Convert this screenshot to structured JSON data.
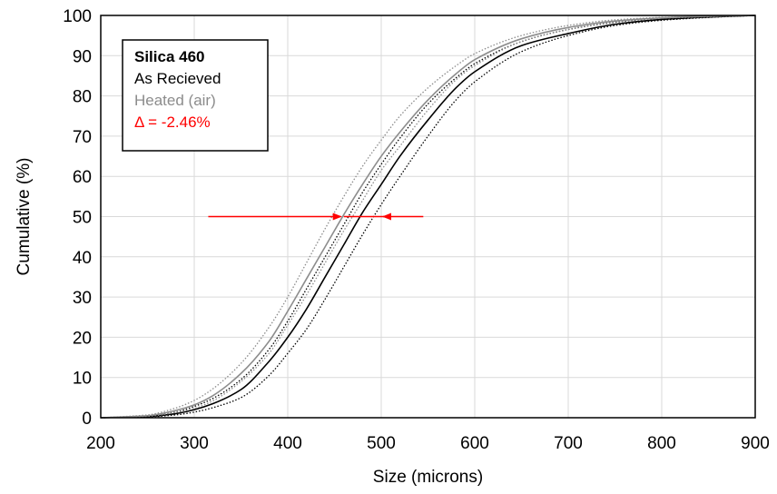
{
  "chart_data": {
    "type": "line",
    "title": "",
    "xlabel": "Size (microns)",
    "ylabel": "Cumulative  (%)",
    "xlim": [
      200,
      900
    ],
    "ylim": [
      0,
      100
    ],
    "x_ticks": [
      "200",
      "300",
      "400",
      "500",
      "600",
      "700",
      "800",
      "900"
    ],
    "y_ticks": [
      "0",
      "10",
      "20",
      "30",
      "40",
      "50",
      "60",
      "70",
      "80",
      "90",
      "100"
    ],
    "grid": true,
    "legend_position": "top-left",
    "legend": {
      "title": "Silica 460",
      "entries": [
        {
          "label": "As Recieved",
          "color": "#000000"
        },
        {
          "label": "Heated (air)",
          "color": "#8c8c8c"
        }
      ],
      "annotation": {
        "label": "Δ = -2.46%",
        "color": "#ff0000"
      }
    },
    "series": [
      {
        "color": "#000000",
        "style": "solid",
        "x": [
          200,
          250,
          280,
          300,
          320,
          350,
          380,
          400,
          420,
          440,
          460,
          480,
          500,
          520,
          550,
          580,
          600,
          650,
          700,
          750,
          800,
          850,
          900
        ],
        "y": [
          0,
          0.3,
          1,
          2,
          3.5,
          7,
          14,
          20,
          27,
          35,
          43,
          51,
          58,
          65,
          74,
          82,
          86,
          92.5,
          95.5,
          97.8,
          99,
          99.6,
          100
        ]
      },
      {
        "color": "#000000",
        "style": "dotted",
        "x": [
          200,
          250,
          280,
          300,
          320,
          350,
          380,
          400,
          420,
          440,
          460,
          480,
          500,
          520,
          550,
          580,
          600,
          650,
          700,
          750,
          800,
          850,
          900
        ],
        "y": [
          0,
          0.4,
          1.4,
          2.8,
          4.8,
          9.5,
          17,
          24,
          32,
          40,
          48,
          56,
          63,
          69.5,
          78,
          84.5,
          88,
          93.5,
          96.5,
          98.3,
          99.3,
          99.7,
          100
        ]
      },
      {
        "color": "#000000",
        "style": "dotted",
        "x": [
          200,
          250,
          280,
          300,
          320,
          350,
          380,
          400,
          420,
          440,
          460,
          480,
          500,
          520,
          550,
          580,
          600,
          650,
          700,
          750,
          800,
          850,
          900
        ],
        "y": [
          0,
          0.2,
          0.7,
          1.4,
          2.5,
          5,
          10.5,
          16,
          22,
          29.5,
          37.5,
          45.5,
          53,
          60,
          70,
          79,
          83.5,
          91,
          95,
          97.5,
          98.8,
          99.5,
          100
        ]
      },
      {
        "color": "#8c8c8c",
        "style": "solid",
        "x": [
          200,
          250,
          280,
          300,
          320,
          350,
          380,
          400,
          420,
          440,
          460,
          480,
          500,
          520,
          550,
          580,
          600,
          650,
          700,
          750,
          800,
          850,
          900
        ],
        "y": [
          0,
          0.5,
          1.8,
          3.2,
          5.5,
          11,
          19,
          26.5,
          34.5,
          42.5,
          50.5,
          58,
          65,
          71,
          79,
          85.5,
          89,
          94.2,
          97,
          98.6,
          99.4,
          99.8,
          100
        ]
      },
      {
        "color": "#8c8c8c",
        "style": "dotted",
        "x": [
          200,
          250,
          280,
          300,
          320,
          350,
          380,
          400,
          420,
          440,
          460,
          480,
          500,
          520,
          550,
          580,
          600,
          650,
          700,
          750,
          800,
          850,
          900
        ],
        "y": [
          0,
          0.7,
          2.4,
          4.3,
          7.2,
          13.5,
          22.5,
          30,
          38.5,
          47,
          55,
          62.5,
          69,
          75,
          82,
          87.5,
          90.5,
          95,
          97.5,
          98.9,
          99.5,
          99.8,
          100
        ]
      },
      {
        "color": "#8c8c8c",
        "style": "dotted",
        "x": [
          200,
          250,
          280,
          300,
          320,
          350,
          380,
          400,
          420,
          440,
          460,
          480,
          500,
          520,
          550,
          580,
          600,
          650,
          700,
          750,
          800,
          850,
          900
        ],
        "y": [
          0,
          0.35,
          1.3,
          2.3,
          4.2,
          9,
          16,
          23,
          30.5,
          38.5,
          46.5,
          54,
          61.5,
          67.5,
          76.5,
          84,
          87.5,
          93.5,
          96.5,
          98.4,
          99.3,
          99.7,
          100
        ]
      }
    ],
    "annotations": [
      {
        "type": "arrow",
        "color": "#ff0000",
        "direction": "right",
        "x_from": 315,
        "x_to": 457,
        "y": 50
      },
      {
        "type": "arrow",
        "color": "#ff0000",
        "direction": "left",
        "x_from": 545,
        "x_to": 502,
        "y": 50
      },
      {
        "type": "segment",
        "color": "#ff0000",
        "x_from": 460,
        "x_to": 505,
        "y": 50
      }
    ]
  }
}
